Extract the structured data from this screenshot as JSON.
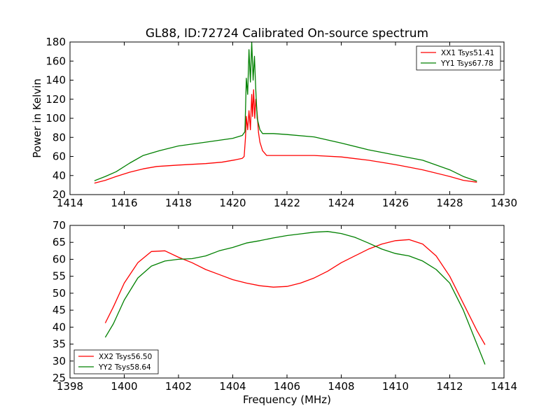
{
  "title": "GL88, ID:72724 Calibrated On-source spectrum",
  "colors": {
    "red": "#ff0000",
    "green": "#008000",
    "axis": "#000000"
  },
  "chart_data": [
    {
      "type": "line",
      "ylabel": "Power in Kelvin",
      "xlabel": "",
      "xlim": [
        1414,
        1430
      ],
      "ylim": [
        20,
        180
      ],
      "xticks": [
        1414,
        1416,
        1418,
        1420,
        1422,
        1424,
        1426,
        1428,
        1430
      ],
      "yticks": [
        20,
        40,
        60,
        80,
        100,
        120,
        140,
        160,
        180
      ],
      "legend_position": "top-right",
      "series": [
        {
          "name": "XX1 Tsys51.41",
          "color": "#ff0000",
          "points": [
            [
              1414.9,
              32
            ],
            [
              1415.3,
              35
            ],
            [
              1415.7,
              39
            ],
            [
              1416.2,
              43.5
            ],
            [
              1416.7,
              47
            ],
            [
              1417.2,
              49.5
            ],
            [
              1418,
              51
            ],
            [
              1419,
              52.5
            ],
            [
              1419.6,
              54
            ],
            [
              1420.1,
              56.5
            ],
            [
              1420.35,
              58
            ],
            [
              1420.42,
              60
            ],
            [
              1420.47,
              80
            ],
            [
              1420.5,
              102
            ],
            [
              1420.55,
              88
            ],
            [
              1420.6,
              108
            ],
            [
              1420.65,
              88
            ],
            [
              1420.7,
              125
            ],
            [
              1420.73,
              102
            ],
            [
              1420.77,
              130
            ],
            [
              1420.81,
              100
            ],
            [
              1420.85,
              120
            ],
            [
              1420.9,
              105
            ],
            [
              1420.95,
              85
            ],
            [
              1421,
              75
            ],
            [
              1421.1,
              66
            ],
            [
              1421.25,
              61
            ],
            [
              1421.6,
              61
            ],
            [
              1422,
              61
            ],
            [
              1423,
              61
            ],
            [
              1424,
              59.5
            ],
            [
              1425,
              56
            ],
            [
              1426,
              51.5
            ],
            [
              1427,
              46
            ],
            [
              1428,
              39
            ],
            [
              1428.5,
              35
            ],
            [
              1429,
              33
            ]
          ]
        },
        {
          "name": "YY1 Tsys67.78",
          "color": "#008000",
          "points": [
            [
              1414.9,
              34.5
            ],
            [
              1415.3,
              39
            ],
            [
              1415.7,
              44
            ],
            [
              1416.2,
              53
            ],
            [
              1416.7,
              61
            ],
            [
              1417.3,
              66
            ],
            [
              1418,
              71
            ],
            [
              1419,
              75
            ],
            [
              1420,
              79
            ],
            [
              1420.35,
              82
            ],
            [
              1420.45,
              86
            ],
            [
              1420.5,
              142
            ],
            [
              1420.55,
              125
            ],
            [
              1420.6,
              172
            ],
            [
              1420.65,
              138
            ],
            [
              1420.7,
              180
            ],
            [
              1420.75,
              140
            ],
            [
              1420.8,
              165
            ],
            [
              1420.85,
              130
            ],
            [
              1420.9,
              100
            ],
            [
              1421,
              88
            ],
            [
              1421.1,
              84
            ],
            [
              1421.5,
              84
            ],
            [
              1422,
              83
            ],
            [
              1423,
              80.5
            ],
            [
              1424,
              74
            ],
            [
              1425,
              67
            ],
            [
              1426,
              61.5
            ],
            [
              1427,
              56
            ],
            [
              1428,
              46
            ],
            [
              1428.5,
              39
            ],
            [
              1429,
              34
            ]
          ]
        }
      ]
    },
    {
      "type": "line",
      "ylabel": "",
      "xlabel": "Frequency (MHz)",
      "xlim": [
        1398,
        1414
      ],
      "ylim": [
        25,
        70
      ],
      "xticks": [
        1398,
        1400,
        1402,
        1404,
        1406,
        1408,
        1410,
        1412,
        1414
      ],
      "yticks": [
        25,
        30,
        35,
        40,
        45,
        50,
        55,
        60,
        65,
        70
      ],
      "legend_position": "bottom-left",
      "series": [
        {
          "name": "XX2 Tsys56.50",
          "color": "#ff0000",
          "points": [
            [
              1399.3,
              41.2
            ],
            [
              1399.6,
              46
            ],
            [
              1400,
              53
            ],
            [
              1400.5,
              59
            ],
            [
              1401,
              62.3
            ],
            [
              1401.5,
              62.5
            ],
            [
              1402,
              60.6
            ],
            [
              1402.5,
              59
            ],
            [
              1403,
              57
            ],
            [
              1403.5,
              55.5
            ],
            [
              1404,
              54
            ],
            [
              1404.5,
              53
            ],
            [
              1405,
              52.2
            ],
            [
              1405.5,
              51.8
            ],
            [
              1406,
              52
            ],
            [
              1406.5,
              53
            ],
            [
              1407,
              54.5
            ],
            [
              1407.5,
              56.5
            ],
            [
              1408,
              59
            ],
            [
              1408.5,
              61
            ],
            [
              1409,
              63
            ],
            [
              1409.5,
              64.5
            ],
            [
              1410,
              65.5
            ],
            [
              1410.5,
              65.8
            ],
            [
              1411,
              64.5
            ],
            [
              1411.5,
              61
            ],
            [
              1412,
              55
            ],
            [
              1412.5,
              47
            ],
            [
              1413,
              39
            ],
            [
              1413.3,
              34.8
            ]
          ]
        },
        {
          "name": "YY2 Tsys58.64",
          "color": "#008000",
          "points": [
            [
              1399.3,
              37
            ],
            [
              1399.6,
              41
            ],
            [
              1400,
              48
            ],
            [
              1400.5,
              54.5
            ],
            [
              1401,
              58
            ],
            [
              1401.5,
              59.5
            ],
            [
              1402,
              60
            ],
            [
              1402.5,
              60.2
            ],
            [
              1403,
              61
            ],
            [
              1403.5,
              62.5
            ],
            [
              1404,
              63.5
            ],
            [
              1404.5,
              64.8
            ],
            [
              1405,
              65.5
            ],
            [
              1405.5,
              66.3
            ],
            [
              1406,
              67
            ],
            [
              1406.5,
              67.5
            ],
            [
              1407,
              68
            ],
            [
              1407.5,
              68.2
            ],
            [
              1408,
              67.6
            ],
            [
              1408.5,
              66.5
            ],
            [
              1409,
              64.8
            ],
            [
              1409.5,
              63
            ],
            [
              1410,
              61.7
            ],
            [
              1410.5,
              61
            ],
            [
              1411,
              59.5
            ],
            [
              1411.5,
              57
            ],
            [
              1412,
              53
            ],
            [
              1412.5,
              45
            ],
            [
              1413,
              35
            ],
            [
              1413.3,
              29
            ]
          ]
        }
      ]
    }
  ]
}
